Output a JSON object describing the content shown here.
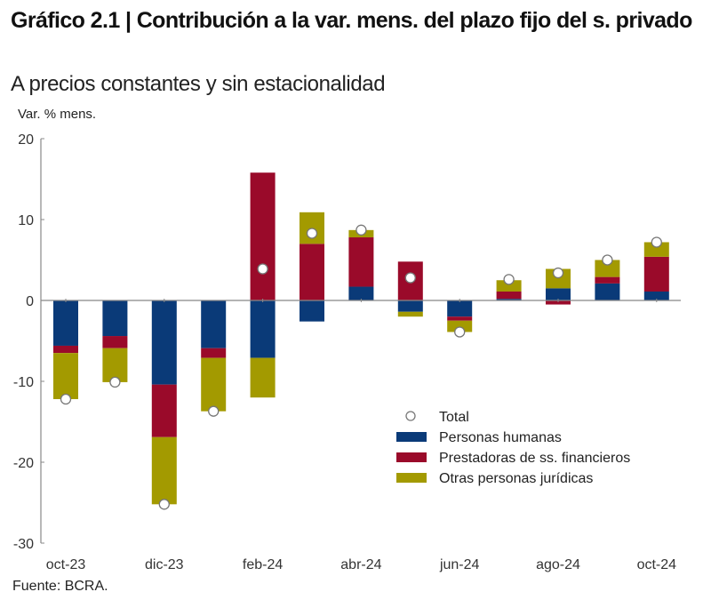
{
  "title": "Gráfico 2.1 | Contribución a la var. mens. del plazo fijo del s. privado",
  "subtitle": "A precios constantes y sin estacionalidad",
  "source": "Fuente: BCRA.",
  "chart_data": {
    "type": "bar",
    "stacked": true,
    "title": "Gráfico 2.1 | Contribución a la var. mens. del plazo fijo del s. privado",
    "subtitle": "A precios constantes y sin estacionalidad",
    "xlabel": "",
    "ylabel": "Var. % mens.",
    "ylim": [
      -30,
      20
    ],
    "yticks": [
      20,
      10,
      0,
      -10,
      -20,
      -30
    ],
    "categories": [
      "oct-23",
      "nov-23",
      "dic-23",
      "ene-24",
      "feb-24",
      "mar-24",
      "abr-24",
      "may-24",
      "jun-24",
      "jul-24",
      "ago-24",
      "sep-24",
      "oct-24"
    ],
    "xtick_labels": [
      "oct-23",
      "dic-23",
      "feb-24",
      "abr-24",
      "jun-24",
      "ago-24",
      "oct-24"
    ],
    "grid": false,
    "legend_position": "lower-right",
    "series": [
      {
        "name": "Personas humanas",
        "color": "#0a3a78",
        "values": [
          -5.6,
          -4.4,
          -10.4,
          -5.9,
          -7.1,
          -2.6,
          1.7,
          -1.4,
          -2.0,
          0.2,
          1.5,
          2.1,
          1.1
        ]
      },
      {
        "name": "Prestadoras de ss. financieros",
        "color": "#9a0a2a",
        "values": [
          -0.9,
          -1.5,
          -6.5,
          -1.2,
          15.8,
          7.0,
          6.1,
          4.8,
          -0.5,
          0.9,
          -0.5,
          0.8,
          4.3
        ]
      },
      {
        "name": "Otras personas jurídicas",
        "color": "#a39a00",
        "values": [
          -5.7,
          -4.2,
          -8.3,
          -6.6,
          -4.9,
          3.9,
          0.9,
          -0.6,
          -1.4,
          1.4,
          2.4,
          2.1,
          1.8
        ]
      }
    ],
    "total": {
      "name": "Total",
      "values": [
        -12.2,
        -10.1,
        -25.2,
        -13.7,
        3.9,
        8.3,
        8.7,
        2.8,
        -3.9,
        2.6,
        3.4,
        5.0,
        7.2
      ]
    }
  }
}
